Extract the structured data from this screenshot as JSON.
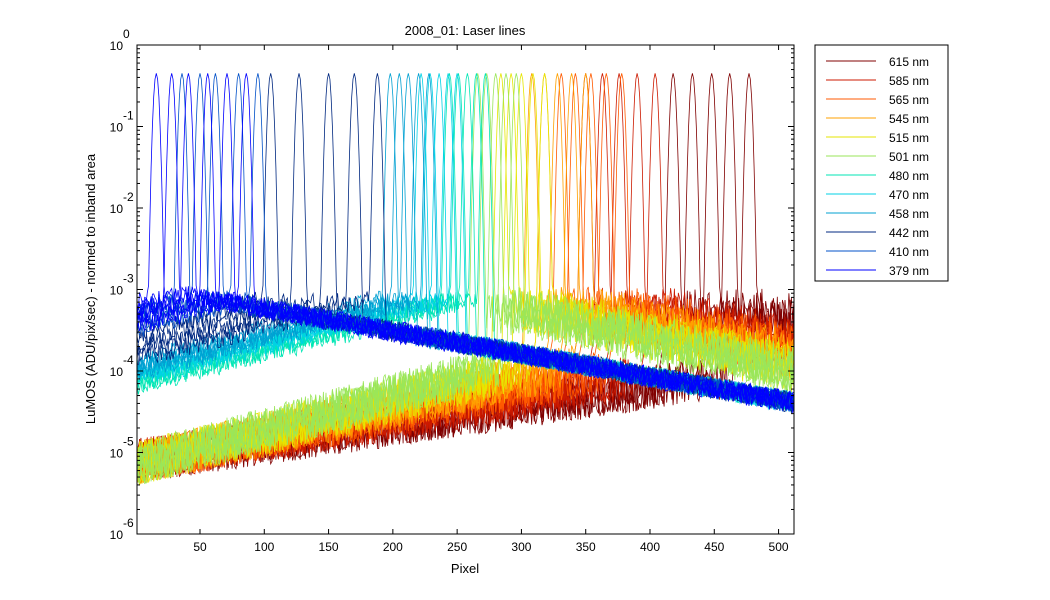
{
  "chart_data": {
    "type": "line",
    "title": "2008_01: Laser lines",
    "xlabel": "Pixel",
    "ylabel": "LuMOS (ADU/pix/sec) - normed to inband area",
    "xlim": [
      1,
      512
    ],
    "ylim": [
      1e-06,
      1
    ],
    "yscale": "log",
    "x_ticks": [
      50,
      100,
      150,
      200,
      250,
      300,
      350,
      400,
      450,
      500
    ],
    "y_ticks": [
      {
        "base": "10",
        "exp": "-6",
        "value": 1e-06
      },
      {
        "base": "10",
        "exp": "-5",
        "value": 1e-05
      },
      {
        "base": "10",
        "exp": "-4",
        "value": 0.0001
      },
      {
        "base": "10",
        "exp": "-3",
        "value": 0.001
      },
      {
        "base": "10",
        "exp": "-2",
        "value": 0.01
      },
      {
        "base": "10",
        "exp": "-1",
        "value": 0.1
      },
      {
        "base": "10",
        "exp": "0",
        "value": 1
      }
    ],
    "grid": false,
    "legend_position": "outside-right",
    "peak_value": 0.45,
    "series": [
      {
        "name": "615 nm",
        "color": "#800000",
        "peaks": [
          477,
          462,
          448,
          433,
          418
        ]
      },
      {
        "name": "585 nm",
        "color": "#cc1a00",
        "peaks": [
          404,
          390,
          376,
          363,
          350
        ]
      },
      {
        "name": "565 nm",
        "color": "#ff5a00",
        "peaks": [
          378,
          366,
          354,
          342,
          331
        ]
      },
      {
        "name": "545 nm",
        "color": "#ffa000",
        "peaks": [
          350,
          339,
          328,
          318,
          308
        ]
      },
      {
        "name": "515 nm",
        "color": "#e6e600",
        "peaks": [
          318,
          309,
          300,
          292,
          284
        ]
      },
      {
        "name": "501 nm",
        "color": "#9ae65a",
        "peaks": [
          296,
          288,
          280,
          273,
          266
        ]
      },
      {
        "name": "480 nm",
        "color": "#00e6b4",
        "peaks": [
          272,
          265,
          258,
          251,
          244
        ]
      },
      {
        "name": "470 nm",
        "color": "#00d2e6",
        "peaks": [
          250,
          243,
          236,
          229,
          222
        ]
      },
      {
        "name": "458 nm",
        "color": "#00a0d2",
        "peaks": [
          228,
          220,
          212,
          205,
          198
        ]
      },
      {
        "name": "442 nm",
        "color": "#002880",
        "peaks": [
          188,
          170,
          150,
          127,
          105
        ]
      },
      {
        "name": "410 nm",
        "color": "#0050c8",
        "peaks": [
          95,
          80,
          62,
          50,
          36
        ]
      },
      {
        "name": "379 nm",
        "color": "#0000ff",
        "peaks": [
          86,
          71,
          56,
          41,
          28,
          16
        ]
      }
    ]
  }
}
